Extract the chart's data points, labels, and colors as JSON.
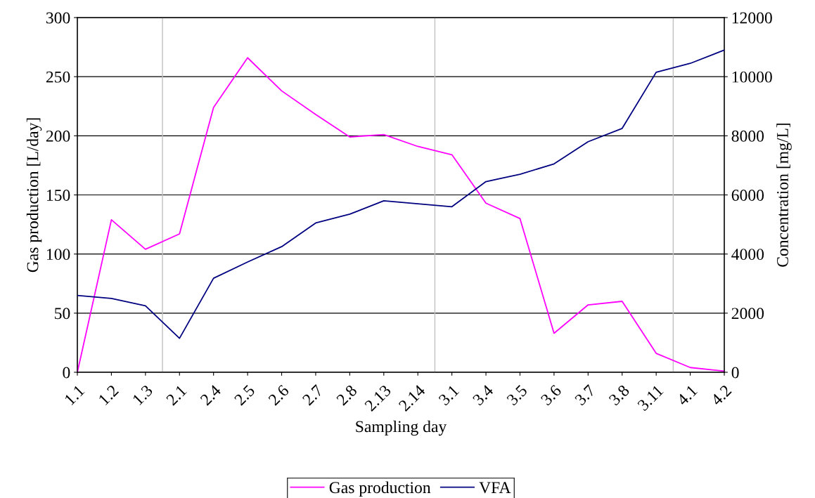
{
  "chart_data": {
    "type": "line",
    "xlabel": "Sampling day",
    "ylabel": "Gas production [L/day]",
    "y2label": "Concentration [mg/L]",
    "categories": [
      "1.1",
      "1.2",
      "1.3",
      "2.1",
      "2.4",
      "2.5",
      "2.6",
      "2.7",
      "2.8",
      "2.13",
      "2.14",
      "3.1",
      "3.4",
      "3.5",
      "3.6",
      "3.7",
      "3.8",
      "3.11",
      "4.1",
      "4.2"
    ],
    "series": [
      {
        "name": "Gas production",
        "color": "#ff00ff",
        "values": [
          0,
          129,
          104,
          117,
          224,
          266,
          238,
          218,
          199,
          201,
          191,
          184,
          143,
          130,
          33,
          57,
          60,
          16,
          4,
          1
        ]
      },
      {
        "name": "VFA",
        "color": "#000080",
        "axis": "y2",
        "values": [
          2600,
          2500,
          2250,
          1150,
          3180,
          3730,
          4250,
          5050,
          5350,
          5800,
          5700,
          5600,
          6450,
          6700,
          7050,
          7800,
          8250,
          10150,
          10450,
          10900
        ]
      }
    ],
    "ylim": [
      0,
      300
    ],
    "yticks": [
      0,
      50,
      100,
      150,
      200,
      250,
      300
    ],
    "y2lim": [
      0,
      12000
    ],
    "y2ticks": [
      0,
      2000,
      4000,
      6000,
      8000,
      10000,
      12000
    ],
    "grid": "y",
    "legend": "bottom",
    "marker": "none",
    "line_style": "solid"
  }
}
